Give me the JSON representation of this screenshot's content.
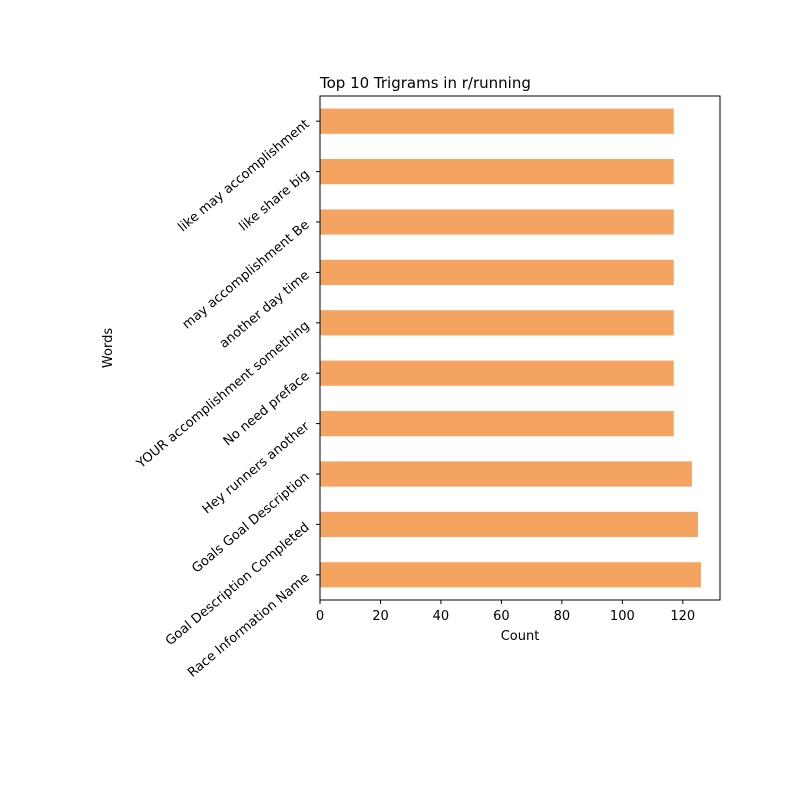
{
  "chart_data": {
    "type": "bar",
    "orientation": "horizontal",
    "title": "Top 10 Trigrams in r/running",
    "xlabel": "Count",
    "ylabel": "Words",
    "categories": [
      "Race Information Name",
      "Goal Description Completed",
      "Goals Goal Description",
      "Hey runners another",
      "No need preface",
      "YOUR accomplishment something",
      "another day time",
      "may accomplishment Be",
      "like share big",
      "like may accomplishment"
    ],
    "values": [
      126,
      125,
      123,
      117,
      117,
      117,
      117,
      117,
      117,
      117
    ],
    "xlim": [
      0,
      132.3
    ],
    "xticks": [
      0,
      20,
      40,
      60,
      80,
      100,
      120
    ],
    "bar_color": "#f4a460",
    "grid": false,
    "legend": "none"
  }
}
